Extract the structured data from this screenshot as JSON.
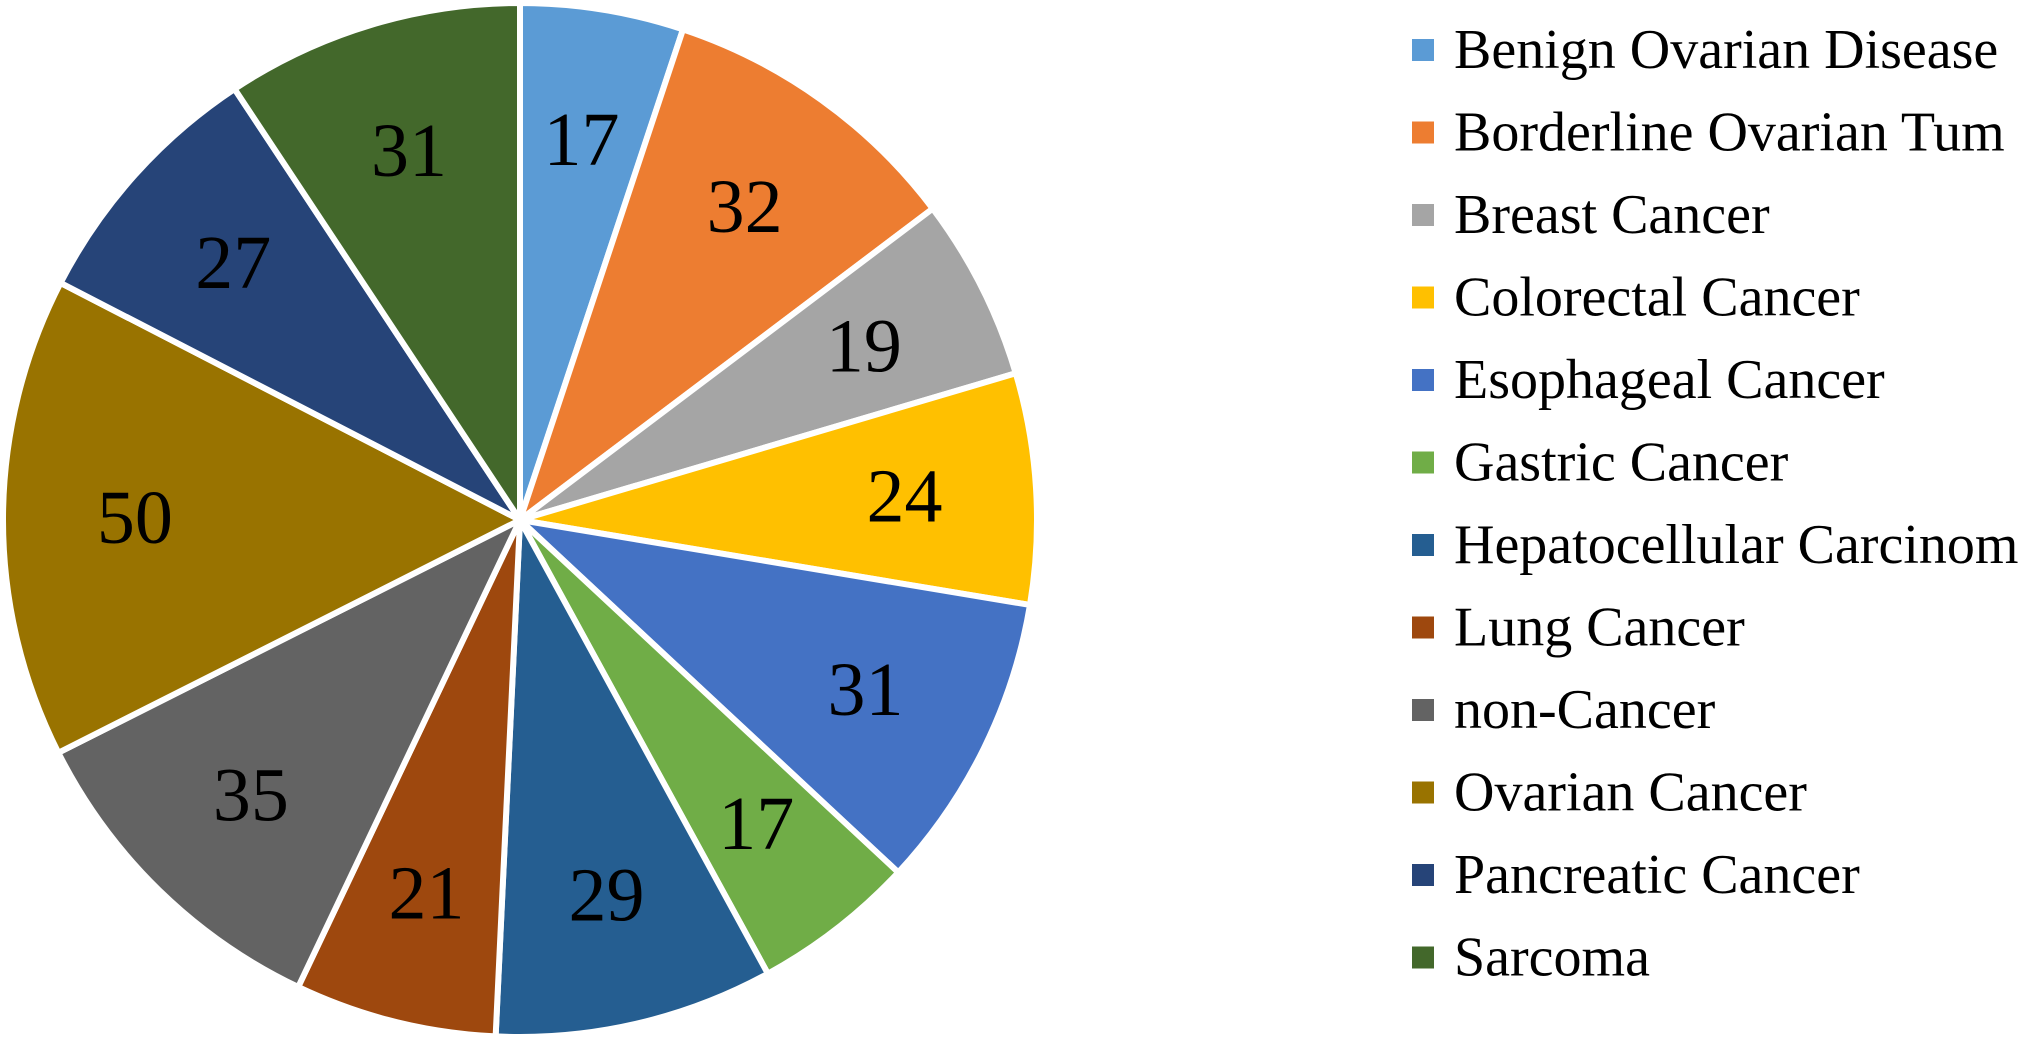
{
  "chart_data": {
    "type": "pie",
    "title": "",
    "legend_position": "right",
    "start_angle": "12 o'clock, clockwise",
    "slices": [
      {
        "label": "Benign Ovarian Disease",
        "value": 17,
        "color": "#5B9BD5"
      },
      {
        "label": "Borderline Ovarian Tum",
        "value": 32,
        "color": "#ED7D31"
      },
      {
        "label": "Breast Cancer",
        "value": 19,
        "color": "#A5A5A5"
      },
      {
        "label": "Colorectal Cancer",
        "value": 24,
        "color": "#FFC000"
      },
      {
        "label": "Esophageal Cancer",
        "value": 31,
        "color": "#4472C4"
      },
      {
        "label": "Gastric Cancer",
        "value": 17,
        "color": "#70AD47"
      },
      {
        "label": "Hepatocellular Carcinom",
        "value": 29,
        "color": "#255E91"
      },
      {
        "label": "Lung Cancer",
        "value": 21,
        "color": "#9E480E"
      },
      {
        "label": "non-Cancer",
        "value": 35,
        "color": "#636363"
      },
      {
        "label": "Ovarian Cancer",
        "value": 50,
        "color": "#997300"
      },
      {
        "label": "Pancreatic Cancer",
        "value": 27,
        "color": "#264478"
      },
      {
        "label": "Sarcoma",
        "value": 31,
        "color": "#43682B"
      }
    ]
  }
}
